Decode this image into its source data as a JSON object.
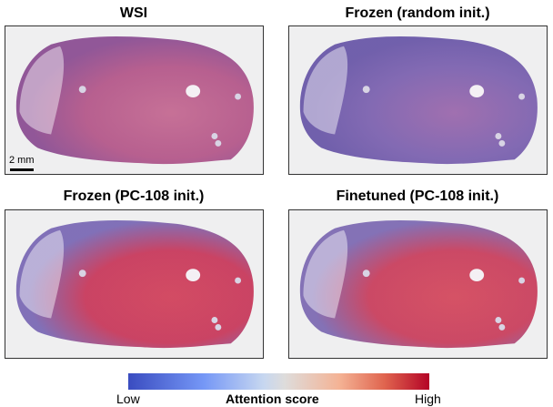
{
  "panels": [
    {
      "title": "WSI",
      "colors": [
        "#b4588a",
        "#8c4f93",
        "#c46a92"
      ]
    },
    {
      "title": "Frozen (random init.)",
      "colors": [
        "#7d63b0",
        "#6a58a8",
        "#9c69ac"
      ]
    },
    {
      "title": "Frozen (PC-108 init.)",
      "colors": [
        "#c83a5c",
        "#7b6ab5",
        "#d1435c"
      ]
    },
    {
      "title": "Finetuned (PC-108 init.)",
      "colors": [
        "#c9405e",
        "#7e6bb3",
        "#d44a5e"
      ]
    }
  ],
  "scale_bar": "2 mm",
  "colorbar": {
    "low": "Low",
    "high": "High",
    "label": "Attention score",
    "colors": [
      "#3a4cc0",
      "#dedcdb",
      "#b40426"
    ]
  }
}
